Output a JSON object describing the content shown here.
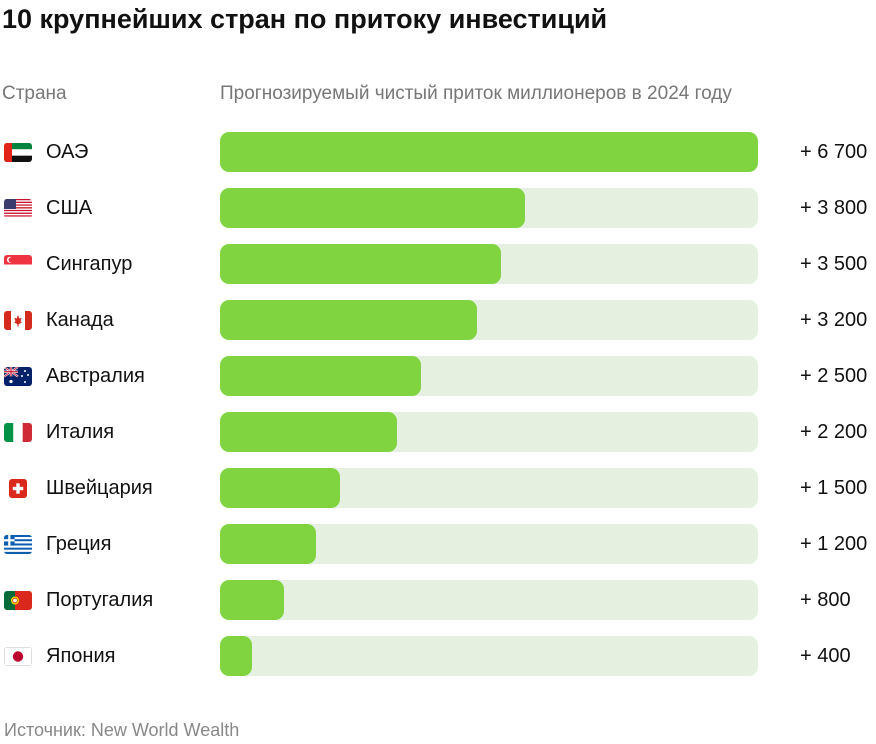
{
  "title": "10 крупнейших стран по притоку инвестиций",
  "headers": {
    "country": "Страна",
    "metric": "Прогнозируемый чистый приток миллионеров в 2024 году"
  },
  "source": "Источник: New World Wealth",
  "colors": {
    "bar": "#7fd43f",
    "track": "#e6f0e1"
  },
  "chart_data": {
    "type": "bar",
    "orientation": "horizontal",
    "categories": [
      "ОАЭ",
      "США",
      "Сингапур",
      "Канада",
      "Австралия",
      "Италия",
      "Швейцария",
      "Греция",
      "Португалия",
      "Япония"
    ],
    "values": [
      6700,
      3800,
      3500,
      3200,
      2500,
      2200,
      1500,
      1200,
      800,
      400
    ],
    "value_labels": [
      "+ 6 700",
      "+ 3 800",
      "+ 3 500",
      "+ 3 200",
      "+ 2 500",
      "+ 2 200",
      "+ 1 500",
      "+ 1 200",
      "+ 800",
      "+ 400"
    ],
    "flags": [
      "uae-flag-icon",
      "usa-flag-icon",
      "singapore-flag-icon",
      "canada-flag-icon",
      "australia-flag-icon",
      "italy-flag-icon",
      "switzerland-flag-icon",
      "greece-flag-icon",
      "portugal-flag-icon",
      "japan-flag-icon"
    ],
    "xlim": [
      0,
      6700
    ],
    "title": "10 крупнейших стран по притоку инвестиций",
    "xlabel": "Прогнозируемый чистый приток миллионеров в 2024 году",
    "ylabel": "Страна",
    "grid": false,
    "legend": "none"
  }
}
